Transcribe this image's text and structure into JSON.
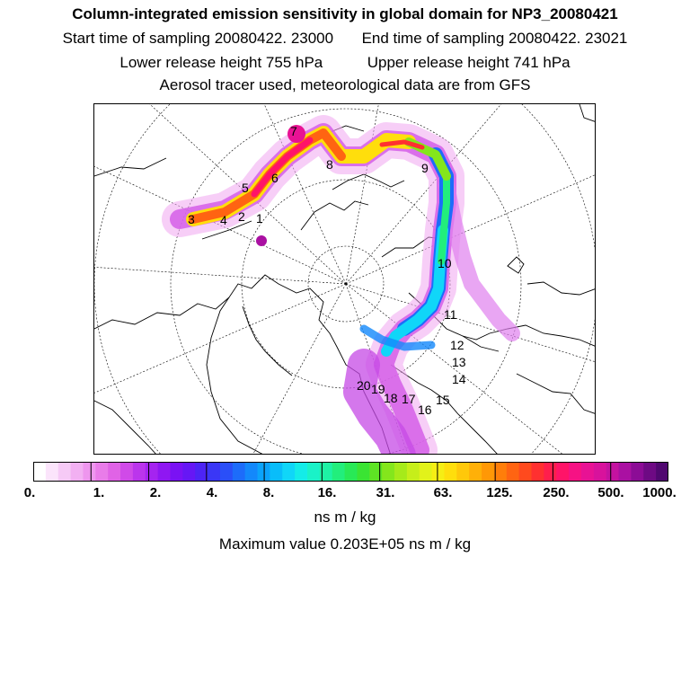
{
  "header": {
    "title": "Column-integrated emission sensitivity in global domain for NP3_20080421",
    "start_time": "Start time of sampling 20080422. 23000",
    "end_time": "End time of sampling 20080422. 23021",
    "lower_release": "Lower release height  755 hPa",
    "upper_release": "Upper release height  741 hPa",
    "tracer_note": "Aerosol tracer used, meteorological data are from GFS"
  },
  "map": {
    "trajectory_labels": [
      "1",
      "2",
      "3",
      "4",
      "5",
      "6",
      "7",
      "8",
      "9",
      "10",
      "11",
      "12",
      "13",
      "14",
      "15",
      "16",
      "17",
      "18",
      "19",
      "20"
    ]
  },
  "colorbar": {
    "tick_labels": [
      "0.",
      "1.",
      "2.",
      "4.",
      "8.",
      "16.",
      "31.",
      "63.",
      "125.",
      "250.",
      "500.",
      "1000."
    ],
    "colors": [
      "#ffffff",
      "#fbe4fb",
      "#f6caf6",
      "#f2b0f2",
      "#ee96ee",
      "#e97ce9",
      "#e063e6",
      "#d04ae8",
      "#bb35ec",
      "#a524f0",
      "#8f17f2",
      "#7a12f4",
      "#6617f5",
      "#4d24f5",
      "#3a37f6",
      "#2a4ff8",
      "#1d6cfa",
      "#1388fb",
      "#0ba3fb",
      "#09bdfa",
      "#10d6f8",
      "#14ece8",
      "#1af2c8",
      "#1ef2a4",
      "#22ee7c",
      "#28e956",
      "#3ae433",
      "#5ee424",
      "#84e61c",
      "#a6ea1a",
      "#c6ee1a",
      "#e2f21a",
      "#f6ee14",
      "#ffde0c",
      "#ffc80a",
      "#ffb008",
      "#ff9806",
      "#ff7e0a",
      "#ff6412",
      "#ff4a1e",
      "#ff3030",
      "#ff1e4c",
      "#ff1468",
      "#f61284",
      "#e81294",
      "#d8129c",
      "#c412a0",
      "#aa10a2",
      "#8c0c96",
      "#6e0a84",
      "#500870"
    ],
    "units": "ns m / kg",
    "max_value": "Maximum value  0.203E+05 ns m / kg"
  }
}
